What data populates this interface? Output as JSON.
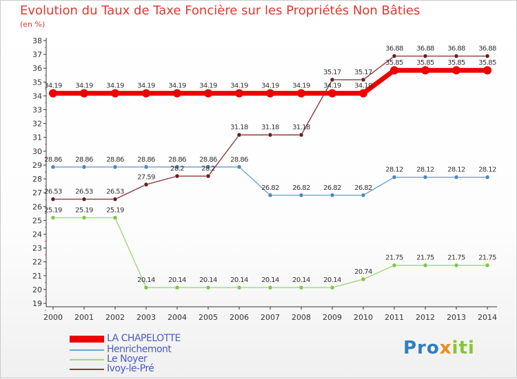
{
  "header": {
    "title": "Evolution du Taux de Taxe Foncière sur les Propriétés Non Bâties",
    "unit": "(en %)"
  },
  "chart_data": {
    "type": "line",
    "title": "Evolution du Taux de Taxe Foncière sur les Propriétés Non Bâties",
    "ylabel": "(en %)",
    "xlabel": "",
    "ylim": [
      19,
      38
    ],
    "y_ticks": [
      19,
      20,
      21,
      22,
      23,
      24,
      25,
      26,
      27,
      28,
      29,
      30,
      31,
      32,
      33,
      34,
      35,
      36,
      37,
      38
    ],
    "grid": false,
    "x": [
      "2000",
      "2001",
      "2002",
      "2003",
      "2004",
      "2005",
      "2006",
      "2007",
      "2008",
      "2009",
      "2010",
      "2011",
      "2012",
      "2013",
      "2014"
    ],
    "series": [
      {
        "name": "LA CHAPELOTTE",
        "color": "#ee0000",
        "thick": true,
        "values": [
          34.19,
          34.19,
          34.19,
          34.19,
          34.19,
          34.19,
          34.19,
          34.19,
          34.19,
          34.19,
          34.19,
          35.85,
          35.85,
          35.85,
          35.85
        ],
        "labels": [
          "34.19",
          "34.19",
          "34.19",
          "34.19",
          "34.19",
          "34.19",
          "34.19",
          "34.19",
          "34.19",
          "34.19",
          "34.19",
          "35.85",
          "35.85",
          "35.85",
          "35.85"
        ]
      },
      {
        "name": "Henrichemont",
        "color": "#6fa3d4",
        "marker": "#4f87c2",
        "values": [
          28.86,
          28.86,
          28.86,
          28.86,
          28.86,
          28.86,
          28.86,
          26.82,
          26.82,
          26.82,
          26.82,
          28.12,
          28.12,
          28.12,
          28.12
        ],
        "labels": [
          "28.86",
          "28.86",
          "28.86",
          "28.86",
          "28.86",
          "28.86",
          "28.86",
          "26.82",
          "26.82",
          "26.82",
          "26.82",
          "28.12",
          "28.12",
          "28.12",
          "28.12"
        ]
      },
      {
        "name": "Le Noyer",
        "color": "#9ed87a",
        "marker": "#7cc840",
        "values": [
          25.19,
          25.19,
          25.19,
          20.14,
          20.14,
          20.14,
          20.14,
          20.14,
          20.14,
          20.14,
          20.74,
          21.75,
          21.75,
          21.75,
          21.75
        ],
        "labels": [
          "25.19",
          "25.19",
          "25.19",
          "20.14",
          "20.14",
          "20.14",
          "20.14",
          "20.14",
          "20.14",
          "20.14",
          "20.74",
          "21.75",
          "21.75",
          "21.75",
          "21.75"
        ]
      },
      {
        "name": "Ivoy-le-Pré",
        "color": "#8b3a3a",
        "marker": "#6a1d1d",
        "values": [
          26.53,
          26.53,
          26.53,
          27.59,
          28.2,
          28.2,
          31.18,
          31.18,
          31.18,
          35.17,
          35.17,
          36.88,
          36.88,
          36.88,
          36.88
        ],
        "labels": [
          "26.53",
          "26.53",
          "26.53",
          "27.59",
          "28.2",
          "28.2",
          "31.18",
          "31.18",
          "31.18",
          "35.17",
          "35.17",
          "36.88",
          "36.88",
          "36.88",
          "36.88"
        ]
      }
    ]
  },
  "legend": {
    "items": [
      "LA CHAPELOTTE",
      "Henrichemont",
      "Le Noyer",
      "Ivoy-le-Pré"
    ]
  },
  "logo": {
    "part1": "Pro",
    "part2": "x",
    "part3": "iti"
  }
}
